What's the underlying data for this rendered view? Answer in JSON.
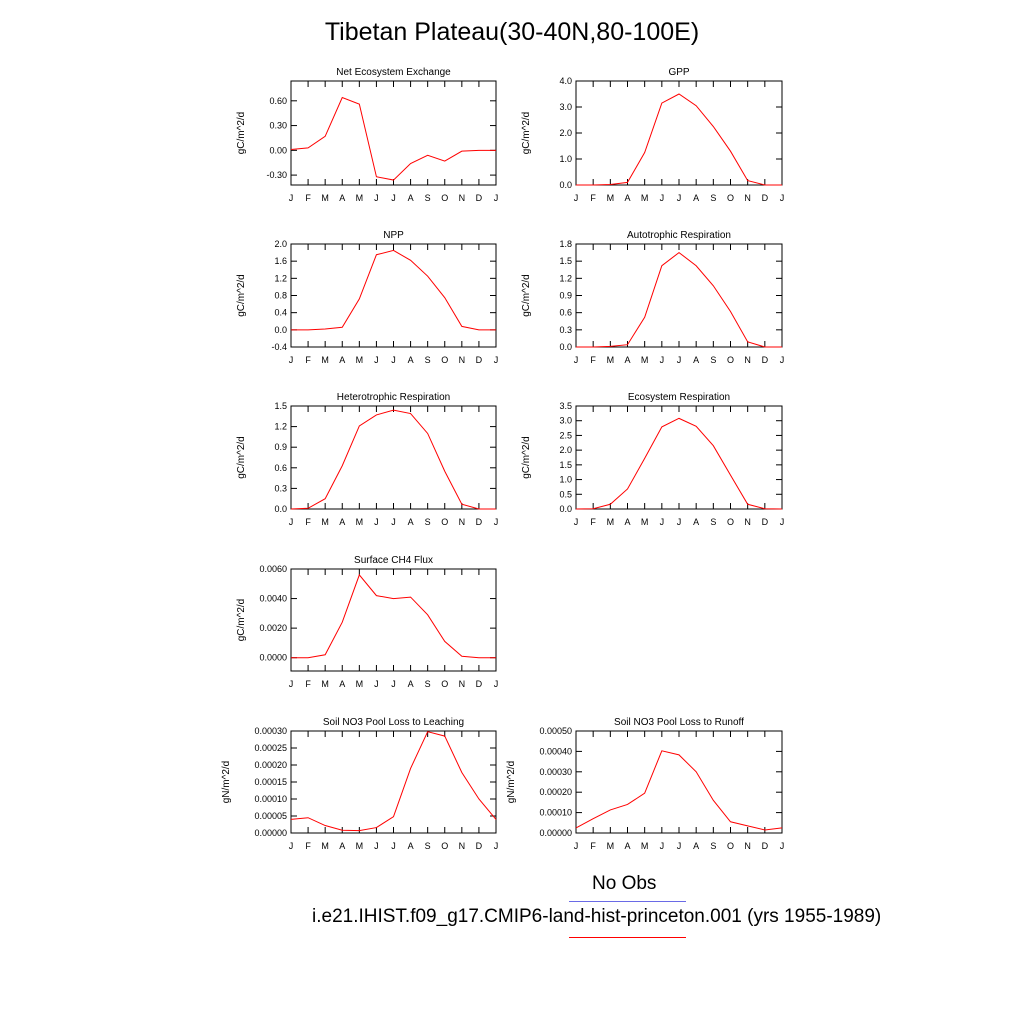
{
  "title": "Tibetan Plateau(30-40N,80-100E)",
  "legend": {
    "obs_label": "No Obs",
    "obs_color": "#6a6ae6",
    "model_label": "i.e21.IHIST.f09_g17.CMIP6-land-hist-princeton.001 (yrs 1955-1989)",
    "model_color": "#ff0000"
  },
  "chart_data": [
    {
      "type": "line",
      "title": "Net Ecosystem Exchange",
      "ylabel": "gC/m^2/d",
      "categories": [
        "J",
        "F",
        "M",
        "A",
        "M",
        "J",
        "J",
        "A",
        "S",
        "O",
        "N",
        "D",
        "J"
      ],
      "ylim": [
        -0.42,
        0.84
      ],
      "yticks": [
        -0.3,
        0.0,
        0.3,
        0.6
      ],
      "ytick_labels": [
        "-0.30",
        "0.00",
        "0.30",
        "0.60"
      ],
      "series": [
        {
          "color": "#ff0000",
          "values": [
            0.01,
            0.03,
            0.17,
            0.64,
            0.56,
            -0.32,
            -0.36,
            -0.16,
            -0.06,
            -0.13,
            -0.01,
            0.0,
            0.0
          ]
        }
      ]
    },
    {
      "type": "line",
      "title": "GPP",
      "ylabel": "gC/m^2/d",
      "categories": [
        "J",
        "F",
        "M",
        "A",
        "M",
        "J",
        "J",
        "A",
        "S",
        "O",
        "N",
        "D",
        "J"
      ],
      "ylim": [
        0.0,
        4.0
      ],
      "yticks": [
        0.0,
        1.0,
        2.0,
        3.0,
        4.0
      ],
      "ytick_labels": [
        "0.0",
        "1.0",
        "2.0",
        "3.0",
        "4.0"
      ],
      "series": [
        {
          "color": "#ff0000",
          "values": [
            0.0,
            0.0,
            0.02,
            0.1,
            1.25,
            3.15,
            3.5,
            3.05,
            2.25,
            1.3,
            0.17,
            0.0,
            0.0
          ]
        }
      ]
    },
    {
      "type": "line",
      "title": "NPP",
      "ylabel": "gC/m^2/d",
      "categories": [
        "J",
        "F",
        "M",
        "A",
        "M",
        "J",
        "J",
        "A",
        "S",
        "O",
        "N",
        "D",
        "J"
      ],
      "ylim": [
        -0.4,
        2.0
      ],
      "yticks": [
        -0.4,
        0.0,
        0.4,
        0.8,
        1.2,
        1.6,
        2.0
      ],
      "ytick_labels": [
        "-0.4",
        "0.0",
        "0.4",
        "0.8",
        "1.2",
        "1.6",
        "2.0"
      ],
      "series": [
        {
          "color": "#ff0000",
          "values": [
            0.0,
            0.0,
            0.02,
            0.06,
            0.72,
            1.75,
            1.85,
            1.62,
            1.25,
            0.75,
            0.08,
            0.0,
            0.0
          ]
        }
      ]
    },
    {
      "type": "line",
      "title": "Autotrophic Respiration",
      "ylabel": "gC/m^2/d",
      "categories": [
        "J",
        "F",
        "M",
        "A",
        "M",
        "J",
        "J",
        "A",
        "S",
        "O",
        "N",
        "D",
        "J"
      ],
      "ylim": [
        0.0,
        1.8
      ],
      "yticks": [
        0.0,
        0.3,
        0.6,
        0.9,
        1.2,
        1.5,
        1.8
      ],
      "ytick_labels": [
        "0.0",
        "0.3",
        "0.6",
        "0.9",
        "1.2",
        "1.5",
        "1.8"
      ],
      "series": [
        {
          "color": "#ff0000",
          "values": [
            0.0,
            0.0,
            0.01,
            0.04,
            0.52,
            1.42,
            1.65,
            1.42,
            1.07,
            0.62,
            0.09,
            0.0,
            0.0
          ]
        }
      ]
    },
    {
      "type": "line",
      "title": "Heterotrophic Respiration",
      "ylabel": "gC/m^2/d",
      "categories": [
        "J",
        "F",
        "M",
        "A",
        "M",
        "J",
        "J",
        "A",
        "S",
        "O",
        "N",
        "D",
        "J"
      ],
      "ylim": [
        0.0,
        1.5
      ],
      "yticks": [
        0.0,
        0.3,
        0.6,
        0.9,
        1.2,
        1.5
      ],
      "ytick_labels": [
        "0.0",
        "0.3",
        "0.6",
        "0.9",
        "1.2",
        "1.5"
      ],
      "series": [
        {
          "color": "#ff0000",
          "values": [
            0.0,
            0.01,
            0.15,
            0.63,
            1.21,
            1.37,
            1.44,
            1.39,
            1.1,
            0.55,
            0.07,
            0.0,
            0.0
          ]
        }
      ]
    },
    {
      "type": "line",
      "title": "Ecosystem Respiration",
      "ylabel": "gC/m^2/d",
      "categories": [
        "J",
        "F",
        "M",
        "A",
        "M",
        "J",
        "J",
        "A",
        "S",
        "O",
        "N",
        "D",
        "J"
      ],
      "ylim": [
        0.0,
        3.5
      ],
      "yticks": [
        0.0,
        0.5,
        1.0,
        1.5,
        2.0,
        2.5,
        3.0,
        3.5
      ],
      "ytick_labels": [
        "0.0",
        "0.5",
        "1.0",
        "1.5",
        "2.0",
        "2.5",
        "3.0",
        "3.5"
      ],
      "series": [
        {
          "color": "#ff0000",
          "values": [
            0.0,
            0.01,
            0.16,
            0.68,
            1.72,
            2.79,
            3.08,
            2.81,
            2.15,
            1.15,
            0.16,
            0.01,
            0.0
          ]
        }
      ]
    },
    {
      "type": "line",
      "title": "Surface CH4 Flux",
      "ylabel": "gC/m^2/d",
      "categories": [
        "J",
        "F",
        "M",
        "A",
        "M",
        "J",
        "J",
        "A",
        "S",
        "O",
        "N",
        "D",
        "J"
      ],
      "ylim": [
        -0.0009,
        0.006
      ],
      "yticks": [
        0.0,
        0.002,
        0.004,
        0.006
      ],
      "ytick_labels": [
        "0.0000",
        "0.0020",
        "0.0040",
        "0.0060"
      ],
      "series": [
        {
          "color": "#ff0000",
          "values": [
            0.0,
            0.0,
            0.0002,
            0.0024,
            0.0056,
            0.0042,
            0.004,
            0.0041,
            0.0029,
            0.0011,
            0.0001,
            0.0,
            0.0
          ]
        }
      ]
    },
    {
      "type": "line",
      "title": "Soil NO3 Pool Loss to Leaching",
      "ylabel": "gN/m^2/d",
      "categories": [
        "J",
        "F",
        "M",
        "A",
        "M",
        "J",
        "J",
        "A",
        "S",
        "O",
        "N",
        "D",
        "J"
      ],
      "ylim": [
        0.0,
        0.0003
      ],
      "yticks": [
        0.0,
        5e-05,
        0.0001,
        0.00015,
        0.0002,
        0.00025,
        0.0003
      ],
      "ytick_labels": [
        "0.00000",
        "0.00005",
        "0.00010",
        "0.00015",
        "0.00020",
        "0.00025",
        "0.00030"
      ],
      "series": [
        {
          "color": "#ff0000",
          "values": [
            4e-05,
            4.5e-05,
            2.2e-05,
            8e-06,
            7e-06,
            1.6e-05,
            4.8e-05,
            0.00019,
            0.000298,
            0.000285,
            0.000178,
            0.0001,
            4e-05
          ]
        }
      ]
    },
    {
      "type": "line",
      "title": "Soil NO3 Pool Loss to Runoff",
      "ylabel": "gN/m^2/d",
      "categories": [
        "J",
        "F",
        "M",
        "A",
        "M",
        "J",
        "J",
        "A",
        "S",
        "O",
        "N",
        "D",
        "J"
      ],
      "ylim": [
        0.0,
        0.0005
      ],
      "yticks": [
        0.0,
        0.0001,
        0.0002,
        0.0003,
        0.0004,
        0.0005
      ],
      "ytick_labels": [
        "0.00000",
        "0.00010",
        "0.00020",
        "0.00030",
        "0.00040",
        "0.00050"
      ],
      "series": [
        {
          "color": "#ff0000",
          "values": [
            2.5e-05,
            7e-05,
            0.000113,
            0.00014,
            0.000195,
            0.000403,
            0.000383,
            0.0003,
            0.00016,
            5.5e-05,
            3.5e-05,
            1.5e-05,
            2.5e-05
          ]
        }
      ]
    }
  ]
}
